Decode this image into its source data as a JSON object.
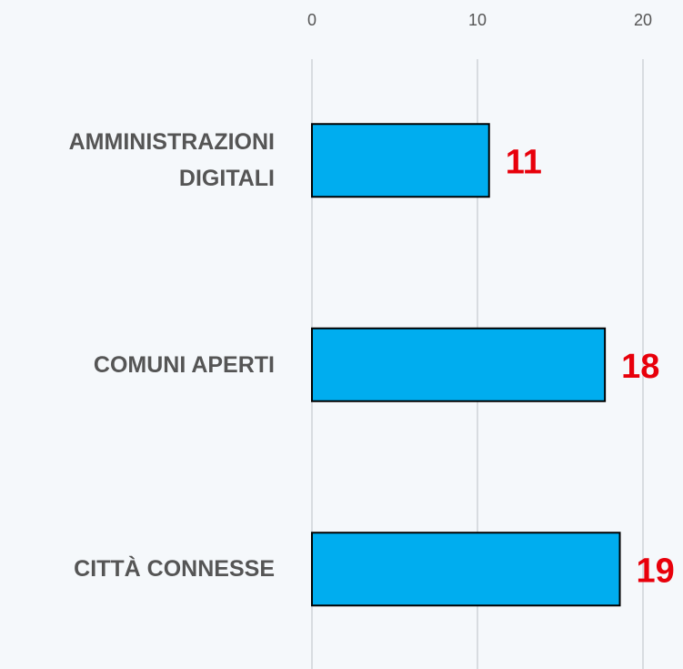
{
  "chart_data": {
    "type": "hbar",
    "categories": [
      "AMMINISTRAZIONI DIGITALI",
      "COMUNI APERTI",
      "CITTÀ CONNESSE"
    ],
    "values": [
      10.7,
      17.7,
      18.6
    ],
    "value_labels": [
      "11",
      "18",
      "19"
    ],
    "color": "#00adef",
    "label_color": "#e8000b",
    "xlim": [
      0,
      20
    ],
    "xticks": [
      0,
      10,
      20
    ],
    "grid": true
  }
}
